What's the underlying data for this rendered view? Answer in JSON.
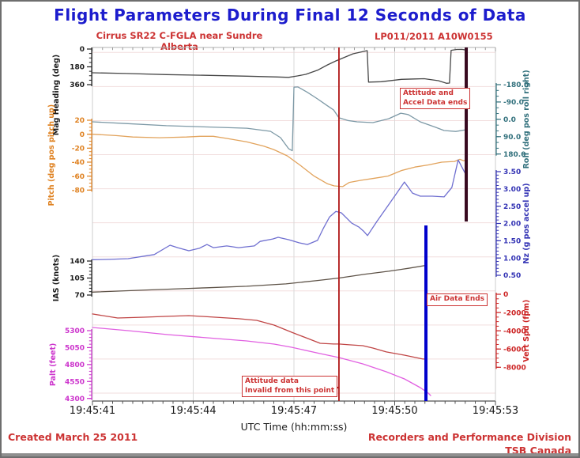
{
  "header": {
    "title": "Flight Parameters During Final 12 Seconds of Data",
    "subtitle_left": "Cirrus SR22 C-FGLA near Sundre Alberta",
    "subtitle_right": "LP011/2011 A10W0155"
  },
  "footer": {
    "created": "Created March 25 2011",
    "division": "Recorders and Performance Division",
    "org": "TSB Canada"
  },
  "annotations": {
    "attitude_accel_ends": {
      "line1": "Attitude and",
      "line2": "Accel Data ends"
    },
    "air_data_ends": {
      "text": "Air Data Ends"
    },
    "attitude_invalid": {
      "line1": "Attitude data",
      "line2": "Invalid from this point"
    }
  },
  "colors": {
    "title_blue": "#1c1ccd",
    "red_text": "#cc3333",
    "attitude_invalid_line": "#b01818",
    "air_data_line": "#0000cc",
    "accel_end_line": "#38091f"
  },
  "chart_data": {
    "type": "line",
    "title": "Flight Parameters During Final 12 Seconds of Data",
    "xlabel": "UTC Time (hh:mm:ss)",
    "x_range_seconds": 12,
    "x_ticks": [
      {
        "t": 0,
        "label": "19:45:41"
      },
      {
        "t": 3,
        "label": "19:45:44"
      },
      {
        "t": 6,
        "label": "19:45:47"
      },
      {
        "t": 9,
        "label": "19:45:50"
      },
      {
        "t": 12,
        "label": "19:45:53"
      }
    ],
    "axes": {
      "heading": {
        "label": "Mag Heading (deg)",
        "side": "left",
        "range": [
          0,
          360
        ],
        "ticks": [
          {
            "v": 0,
            "label": "0"
          },
          {
            "v": 180,
            "label": "180"
          },
          {
            "v": 360,
            "label": "360"
          }
        ],
        "line_color": "#474747",
        "tick_color": "#1a1a1a"
      },
      "roll": {
        "label": "Roll (deg pos roll right)",
        "side": "right",
        "range": [
          -180,
          180
        ],
        "ticks": [
          {
            "v": -180,
            "label": "-180.0"
          },
          {
            "v": -90,
            "label": "-90.0"
          },
          {
            "v": 0,
            "label": "0.0"
          },
          {
            "v": 90,
            "label": "90.0"
          },
          {
            "v": 180,
            "label": "180.0"
          }
        ],
        "line_color": "#7d99a6",
        "tick_color": "#31707c"
      },
      "pitch": {
        "label": "Pitch (deg pos pitch up)",
        "side": "left",
        "range": [
          20,
          -80
        ],
        "ticks": [
          {
            "v": 20,
            "label": "20"
          },
          {
            "v": 0,
            "label": "0"
          },
          {
            "v": -20,
            "label": "-20"
          },
          {
            "v": -40,
            "label": "-40"
          },
          {
            "v": -60,
            "label": "-60"
          },
          {
            "v": -80,
            "label": "-80"
          }
        ],
        "line_color": "#e2a35c",
        "tick_color": "#df8120"
      },
      "nz": {
        "label": "Nz (g pos accel up)",
        "side": "right",
        "range": [
          3.5,
          0.5
        ],
        "ticks": [
          {
            "v": 3.5,
            "label": "3.50"
          },
          {
            "v": 3.0,
            "label": "3.00"
          },
          {
            "v": 2.5,
            "label": "2.50"
          },
          {
            "v": 2.0,
            "label": "2.00"
          },
          {
            "v": 1.5,
            "label": "1.50"
          },
          {
            "v": 1.0,
            "label": "1.00"
          },
          {
            "v": 0.5,
            "label": "0.50"
          }
        ],
        "line_color": "#6f6fd0",
        "tick_color": "#3232b4"
      },
      "ias": {
        "label": "IAS (knots)",
        "side": "left",
        "range": [
          140,
          70
        ],
        "ticks": [
          {
            "v": 140,
            "label": "140"
          },
          {
            "v": 105,
            "label": "105"
          },
          {
            "v": 70,
            "label": "70"
          }
        ],
        "line_color": "#5e5348",
        "tick_color": "#1a1a1a"
      },
      "vspd": {
        "label": "Vert Spd (fpm)",
        "side": "right",
        "range": [
          0,
          -8000
        ],
        "ticks": [
          {
            "v": 0,
            "label": "0"
          },
          {
            "v": -2000,
            "label": "-2000"
          },
          {
            "v": -4000,
            "label": "-4000"
          },
          {
            "v": -6000,
            "label": "-6000"
          },
          {
            "v": -8000,
            "label": "-8000"
          }
        ],
        "line_color": "#c04545",
        "tick_color": "#cc2222"
      },
      "palt": {
        "label": "Palt (feet)",
        "side": "left",
        "range": [
          5300,
          4300
        ],
        "ticks": [
          {
            "v": 5300,
            "label": "5300"
          },
          {
            "v": 5050,
            "label": "5050"
          },
          {
            "v": 4800,
            "label": "4800"
          },
          {
            "v": 4550,
            "label": "4550"
          },
          {
            "v": 4300,
            "label": "4300"
          }
        ],
        "line_color": "#e160e1",
        "tick_color": "#cc33cc"
      }
    },
    "series": [
      {
        "name": "mag-heading-line",
        "axis": "heading",
        "color": "#474747",
        "points": [
          [
            0,
            240
          ],
          [
            1,
            247
          ],
          [
            2.2,
            258
          ],
          [
            3.5,
            266
          ],
          [
            4.6,
            274
          ],
          [
            5.5,
            282
          ],
          [
            5.84,
            286
          ],
          [
            6.1,
            272
          ],
          [
            6.35,
            256
          ],
          [
            6.7,
            214
          ],
          [
            7.0,
            160
          ],
          [
            7.25,
            120
          ],
          [
            7.76,
            48
          ],
          [
            8.05,
            26
          ],
          [
            8.18,
            16
          ],
          [
            8.22,
            334
          ],
          [
            8.6,
            330
          ],
          [
            9.2,
            306
          ],
          [
            9.6,
            302
          ],
          [
            9.88,
            300
          ],
          [
            10.3,
            320
          ],
          [
            10.54,
            346
          ],
          [
            10.63,
            344
          ],
          [
            10.68,
            13
          ],
          [
            10.85,
            4
          ],
          [
            11.0,
            3
          ],
          [
            11.13,
            10
          ]
        ]
      },
      {
        "name": "roll-line",
        "axis": "roll",
        "color": "#7d99a6",
        "points": [
          [
            0,
            13
          ],
          [
            1,
            22
          ],
          [
            2.2,
            33
          ],
          [
            3.5,
            40
          ],
          [
            4.6,
            46
          ],
          [
            5.3,
            62
          ],
          [
            5.6,
            95
          ],
          [
            5.84,
            152
          ],
          [
            5.95,
            163
          ],
          [
            6.0,
            -167
          ],
          [
            6.12,
            -168
          ],
          [
            6.4,
            -140
          ],
          [
            6.7,
            -106
          ],
          [
            7.0,
            -70
          ],
          [
            7.18,
            -49
          ],
          [
            7.34,
            -8
          ],
          [
            7.6,
            6
          ],
          [
            7.88,
            13
          ],
          [
            8.35,
            17
          ],
          [
            8.82,
            -3
          ],
          [
            9.18,
            -32
          ],
          [
            9.4,
            -25
          ],
          [
            9.76,
            13
          ],
          [
            10.2,
            40
          ],
          [
            10.47,
            58
          ],
          [
            10.82,
            63
          ],
          [
            11.13,
            54
          ]
        ]
      },
      {
        "name": "pitch-line",
        "axis": "pitch",
        "color": "#e2a35c",
        "points": [
          [
            0,
            0
          ],
          [
            0.7,
            -2
          ],
          [
            1.2,
            -4
          ],
          [
            2,
            -5
          ],
          [
            2.8,
            -4
          ],
          [
            3.2,
            -3
          ],
          [
            3.6,
            -3
          ],
          [
            4,
            -6
          ],
          [
            4.6,
            -11
          ],
          [
            5.1,
            -17
          ],
          [
            5.4,
            -22
          ],
          [
            5.8,
            -31
          ],
          [
            6.2,
            -45
          ],
          [
            6.6,
            -60
          ],
          [
            7,
            -71
          ],
          [
            7.2,
            -74
          ],
          [
            7.45,
            -75
          ],
          [
            7.65,
            -69
          ],
          [
            8,
            -66
          ],
          [
            8.4,
            -63
          ],
          [
            8.8,
            -60
          ],
          [
            9.2,
            -52
          ],
          [
            9.6,
            -47
          ],
          [
            10,
            -44
          ],
          [
            10.4,
            -40
          ],
          [
            10.78,
            -39
          ],
          [
            10.94,
            -36
          ],
          [
            11.05,
            -38
          ],
          [
            11.13,
            -37
          ]
        ]
      },
      {
        "name": "nz-line",
        "axis": "nz",
        "color": "#6f6fd0",
        "points": [
          [
            0,
            0.95
          ],
          [
            0.5,
            0.96
          ],
          [
            1.06,
            0.98
          ],
          [
            1.84,
            1.1
          ],
          [
            2.31,
            1.37
          ],
          [
            2.54,
            1.3
          ],
          [
            2.87,
            1.21
          ],
          [
            3.18,
            1.28
          ],
          [
            3.41,
            1.39
          ],
          [
            3.6,
            1.3
          ],
          [
            4.0,
            1.35
          ],
          [
            4.35,
            1.3
          ],
          [
            4.82,
            1.35
          ],
          [
            4.99,
            1.48
          ],
          [
            5.37,
            1.55
          ],
          [
            5.53,
            1.6
          ],
          [
            5.84,
            1.53
          ],
          [
            6.16,
            1.44
          ],
          [
            6.4,
            1.39
          ],
          [
            6.7,
            1.51
          ],
          [
            6.87,
            1.85
          ],
          [
            7.06,
            2.19
          ],
          [
            7.25,
            2.35
          ],
          [
            7.41,
            2.31
          ],
          [
            7.72,
            2.01
          ],
          [
            7.93,
            1.9
          ],
          [
            8.07,
            1.78
          ],
          [
            8.19,
            1.65
          ],
          [
            8.47,
            2.06
          ],
          [
            8.82,
            2.54
          ],
          [
            9.06,
            2.88
          ],
          [
            9.29,
            3.2
          ],
          [
            9.53,
            2.88
          ],
          [
            9.76,
            2.79
          ],
          [
            10.12,
            2.79
          ],
          [
            10.47,
            2.77
          ],
          [
            10.7,
            3.04
          ],
          [
            10.89,
            3.84
          ],
          [
            11.11,
            3.43
          ]
        ]
      },
      {
        "name": "ias-line",
        "axis": "ias",
        "color": "#5e5348",
        "points": [
          [
            0,
            76
          ],
          [
            1.06,
            79
          ],
          [
            2.24,
            82
          ],
          [
            3.41,
            85
          ],
          [
            4.59,
            88
          ],
          [
            5.76,
            93
          ],
          [
            6.7,
            100
          ],
          [
            7.34,
            105
          ],
          [
            8.12,
            113
          ],
          [
            8.82,
            119
          ],
          [
            9.41,
            125
          ],
          [
            9.93,
            131
          ]
        ]
      },
      {
        "name": "palt-line",
        "axis": "palt",
        "color": "#e160e1",
        "points": [
          [
            0,
            5347
          ],
          [
            1.06,
            5300
          ],
          [
            2.24,
            5242
          ],
          [
            3.41,
            5195
          ],
          [
            4.59,
            5148
          ],
          [
            5.41,
            5102
          ],
          [
            5.93,
            5055
          ],
          [
            6.78,
            4962
          ],
          [
            7.34,
            4903
          ],
          [
            8.05,
            4810
          ],
          [
            8.75,
            4693
          ],
          [
            9.29,
            4588
          ],
          [
            9.76,
            4460
          ],
          [
            10.0,
            4378
          ],
          [
            10.07,
            4343
          ]
        ]
      },
      {
        "name": "vert-spd-line",
        "axis": "vspd",
        "color": "#c04545",
        "points": [
          [
            0,
            -2160
          ],
          [
            0.75,
            -2600
          ],
          [
            1.53,
            -2510
          ],
          [
            2.24,
            -2420
          ],
          [
            2.87,
            -2340
          ],
          [
            3.65,
            -2510
          ],
          [
            4.35,
            -2680
          ],
          [
            4.89,
            -2860
          ],
          [
            5.41,
            -3380
          ],
          [
            5.93,
            -4160
          ],
          [
            6.35,
            -4760
          ],
          [
            6.78,
            -5370
          ],
          [
            7.18,
            -5450
          ],
          [
            7.34,
            -5450
          ],
          [
            7.65,
            -5540
          ],
          [
            8.05,
            -5630
          ],
          [
            8.35,
            -5890
          ],
          [
            8.75,
            -6320
          ],
          [
            9.29,
            -6670
          ],
          [
            9.84,
            -7100
          ],
          [
            9.93,
            -7100
          ]
        ]
      }
    ],
    "markers": [
      {
        "id": "attitude_invalid",
        "t": 7.34,
        "color": "#b01818",
        "label": "Attitude data Invalid from this point"
      },
      {
        "id": "air_data",
        "t": 9.93,
        "color": "#0000cc",
        "label": "Air Data Ends"
      },
      {
        "id": "accel_end",
        "t": 11.13,
        "color": "#38091f",
        "label": "Attitude and Accel Data ends"
      }
    ],
    "grid": true,
    "legend": "none"
  }
}
